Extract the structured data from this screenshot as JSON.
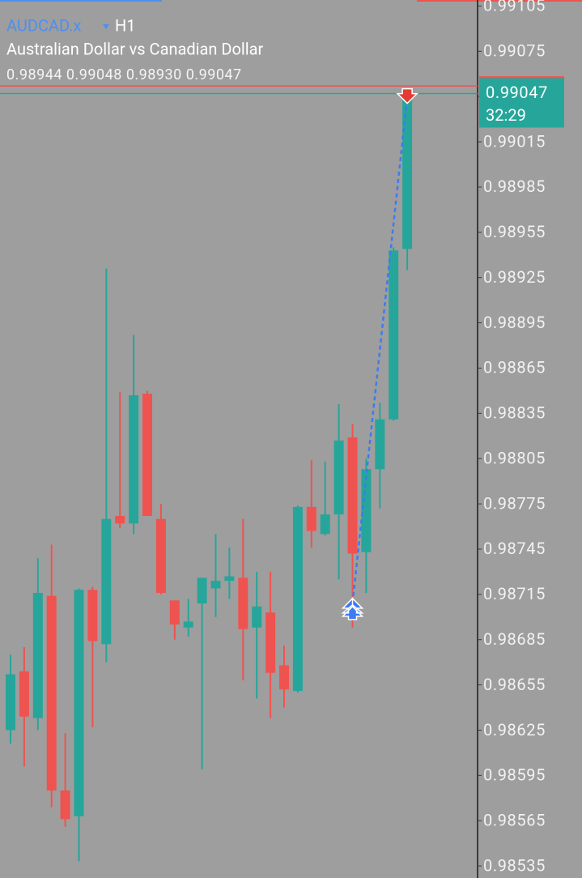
{
  "chart_data": {
    "type": "candlestick",
    "symbol": "AUDCAD.x",
    "timeframe": "H1",
    "title": "Australian Dollar vs Canadian Dollar",
    "ohlc_text": "0.98944 0.99048 0.98930 0.99047",
    "countdown": "32:29",
    "up_color": "#26a69a",
    "down_color": "#ef5350",
    "open": [
      0.98625,
      0.98664,
      0.98633,
      0.98714,
      0.98585,
      0.98568,
      0.98718,
      0.98682,
      0.98767,
      0.98762,
      0.98848,
      0.98765,
      0.98711,
      0.98693,
      0.98709,
      0.98719,
      0.98724,
      0.98726,
      0.98693,
      0.98703,
      0.98668,
      0.98651,
      0.98773,
      0.98755,
      0.98768,
      0.98819,
      0.98743,
      0.98798,
      0.98831,
      0.98944
    ],
    "high": [
      0.98675,
      0.9868,
      0.98739,
      0.98748,
      0.98623,
      0.98719,
      0.9872,
      0.98931,
      0.98849,
      0.98887,
      0.9885,
      0.98775,
      0.98711,
      0.98712,
      0.98726,
      0.98755,
      0.98746,
      0.98765,
      0.9873,
      0.9873,
      0.98681,
      0.98774,
      0.98804,
      0.98803,
      0.98841,
      0.98828,
      0.98805,
      0.98842,
      0.98945,
      0.99048
    ],
    "low": [
      0.98616,
      0.98601,
      0.98625,
      0.98574,
      0.98561,
      0.98538,
      0.98627,
      0.9867,
      0.98759,
      0.98755,
      0.98767,
      0.98715,
      0.98685,
      0.98687,
      0.98599,
      0.987,
      0.98712,
      0.98658,
      0.98646,
      0.98633,
      0.9864,
      0.9865,
      0.98746,
      0.98754,
      0.98725,
      0.98693,
      0.98716,
      0.98772,
      0.9883,
      0.9893
    ],
    "close": [
      0.98662,
      0.98634,
      0.98716,
      0.98585,
      0.98566,
      0.98718,
      0.98684,
      0.98765,
      0.98762,
      0.98847,
      0.98767,
      0.98716,
      0.98695,
      0.98697,
      0.98726,
      0.98724,
      0.98727,
      0.98692,
      0.98707,
      0.98663,
      0.98652,
      0.98773,
      0.98757,
      0.98768,
      0.98817,
      0.98742,
      0.98798,
      0.98831,
      0.98943,
      0.99047
    ],
    "ask_line": 0.99052,
    "ylim": [
      0.98527,
      0.99109
    ],
    "yticks": [
      0.99105,
      0.99075,
      0.99045,
      0.99015,
      0.98985,
      0.98955,
      0.98925,
      0.98895,
      0.98865,
      0.98835,
      0.98805,
      0.98775,
      0.98745,
      0.98715,
      0.98685,
      0.98655,
      0.98625,
      0.98595,
      0.98565,
      0.98535
    ]
  }
}
